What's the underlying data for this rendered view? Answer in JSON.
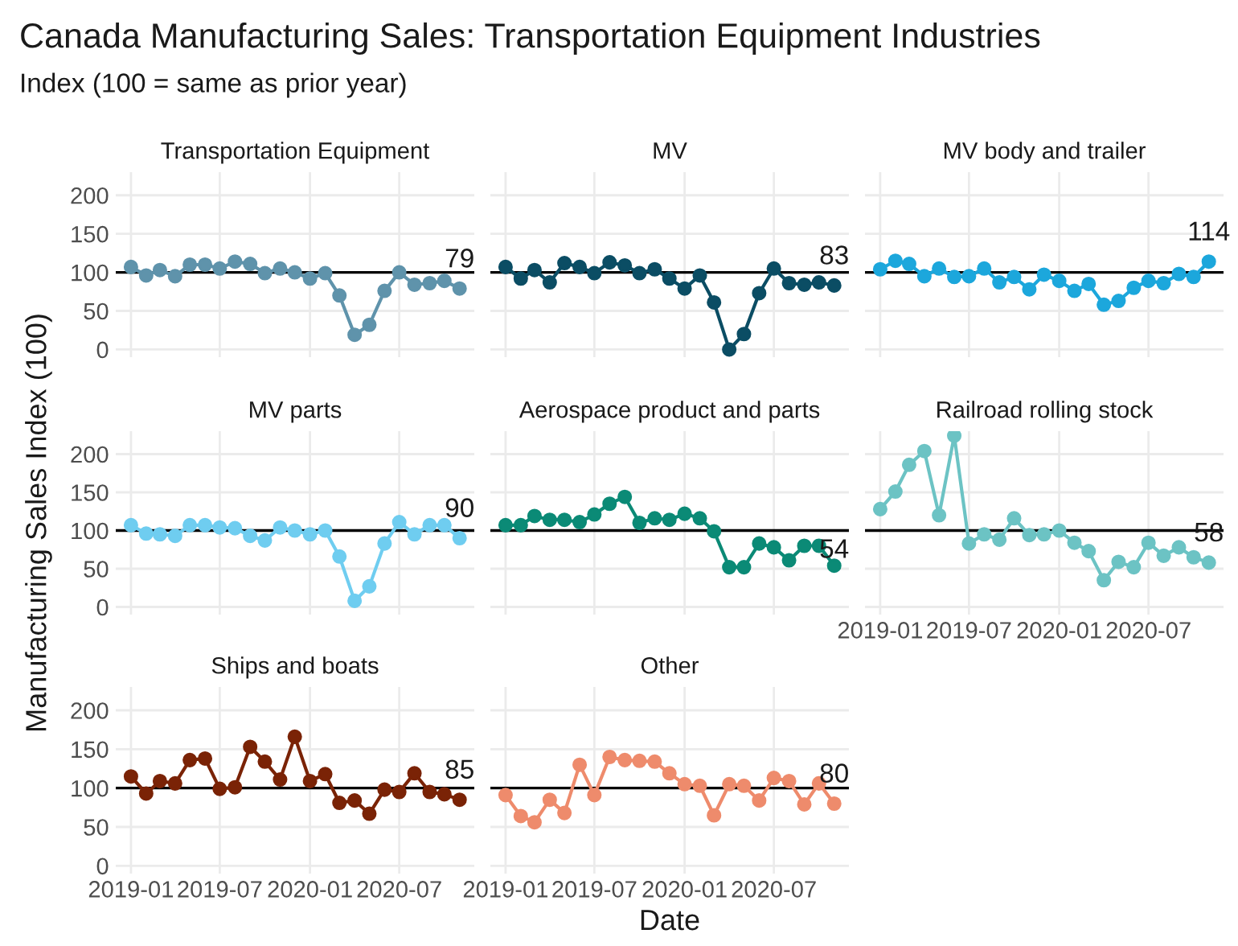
{
  "chart_data": [
    {
      "type": "line",
      "title": "Canada Manufacturing Sales: Transportation Equipment Industries",
      "subtitle": "Index (100 = same as prior year)",
      "tick_labels": "y",
      "grid": true,
      "legend": false,
      "marker": "circle",
      "line_style": "solid",
      "xlim": [
        "2018-12-01",
        "2020-12-01"
      ],
      "ylim": [
        -10,
        230
      ],
      "yticks": [
        0,
        50,
        100,
        150,
        200
      ],
      "xticks": [
        {
          "value": "2019-01",
          "label": null
        },
        {
          "value": "2019-07",
          "label": null
        },
        {
          "value": "2020-01",
          "label": null
        },
        {
          "value": "2020-07",
          "label": null
        }
      ],
      "ref_lines": [
        {
          "axis": "y",
          "value": 100,
          "color": "#000000"
        }
      ],
      "annotations": [
        {
          "text": "79",
          "x": "2020-11",
          "y": 79
        }
      ],
      "x": [
        "2019-01",
        "2019-02",
        "2019-03",
        "2019-04",
        "2019-05",
        "2019-06",
        "2019-07",
        "2019-08",
        "2019-09",
        "2019-10",
        "2019-11",
        "2019-12",
        "2020-01",
        "2020-02",
        "2020-03",
        "2020-04",
        "2020-05",
        "2020-06",
        "2020-07",
        "2020-08",
        "2020-09",
        "2020-10",
        "2020-11"
      ],
      "series": [
        {
          "name": "Transportation Equipment",
          "color": "#5f93ab",
          "values": [
            107,
            96,
            103,
            95,
            110,
            110,
            105,
            114,
            111,
            99,
            105,
            100,
            92,
            99,
            70,
            19,
            32,
            76,
            100,
            84,
            86,
            89,
            79
          ]
        }
      ]
    },
    {
      "type": "line",
      "tick_labels": false,
      "grid": true,
      "legend": false,
      "marker": "circle",
      "line_style": "solid",
      "xlim": [
        "2018-12-01",
        "2020-12-01"
      ],
      "ylim": [
        -10,
        230
      ],
      "yticks": [
        {
          "value": 0,
          "label": null
        },
        {
          "value": 50,
          "label": null
        },
        {
          "value": 100,
          "label": null
        },
        {
          "value": 150,
          "label": null
        },
        {
          "value": 200,
          "label": null
        }
      ],
      "xticks": [
        {
          "value": "2019-01",
          "label": null
        },
        {
          "value": "2019-07",
          "label": null
        },
        {
          "value": "2020-01",
          "label": null
        },
        {
          "value": "2020-07",
          "label": null
        }
      ],
      "ref_lines": [
        {
          "axis": "y",
          "value": 100,
          "color": "#000000"
        }
      ],
      "annotations": [
        {
          "text": "83",
          "x": "2020-11",
          "y": 83
        }
      ],
      "x": [
        "2019-01",
        "2019-02",
        "2019-03",
        "2019-04",
        "2019-05",
        "2019-06",
        "2019-07",
        "2019-08",
        "2019-09",
        "2019-10",
        "2019-11",
        "2019-12",
        "2020-01",
        "2020-02",
        "2020-03",
        "2020-04",
        "2020-05",
        "2020-06",
        "2020-07",
        "2020-08",
        "2020-09",
        "2020-10",
        "2020-11"
      ],
      "series": [
        {
          "name": "MV",
          "color": "#0b4d64",
          "values": [
            107,
            92,
            103,
            87,
            112,
            107,
            99,
            113,
            109,
            99,
            104,
            92,
            79,
            96,
            61,
            0,
            20,
            73,
            105,
            86,
            84,
            87,
            83
          ]
        }
      ]
    },
    {
      "type": "line",
      "tick_labels": false,
      "grid": true,
      "legend": false,
      "marker": "circle",
      "line_style": "solid",
      "xlim": [
        "2018-12-01",
        "2020-12-01"
      ],
      "ylim": [
        -10,
        230
      ],
      "yticks": [
        {
          "value": 0,
          "label": null
        },
        {
          "value": 50,
          "label": null
        },
        {
          "value": 100,
          "label": null
        },
        {
          "value": 150,
          "label": null
        },
        {
          "value": 200,
          "label": null
        }
      ],
      "xticks": [
        {
          "value": "2019-01",
          "label": null
        },
        {
          "value": "2019-07",
          "label": null
        },
        {
          "value": "2020-01",
          "label": null
        },
        {
          "value": "2020-07",
          "label": null
        }
      ],
      "ref_lines": [
        {
          "axis": "y",
          "value": 100,
          "color": "#000000"
        }
      ],
      "annotations": [
        {
          "text": "114",
          "x": "2020-11",
          "y": 114
        }
      ],
      "x": [
        "2019-01",
        "2019-02",
        "2019-03",
        "2019-04",
        "2019-05",
        "2019-06",
        "2019-07",
        "2019-08",
        "2019-09",
        "2019-10",
        "2019-11",
        "2019-12",
        "2020-01",
        "2020-02",
        "2020-03",
        "2020-04",
        "2020-05",
        "2020-06",
        "2020-07",
        "2020-08",
        "2020-09",
        "2020-10",
        "2020-11"
      ],
      "series": [
        {
          "name": "MV body and trailer",
          "color": "#1ca7dc",
          "values": [
            104,
            115,
            111,
            95,
            105,
            94,
            95,
            105,
            87,
            94,
            78,
            97,
            89,
            76,
            85,
            58,
            63,
            80,
            89,
            86,
            98,
            94,
            114
          ]
        }
      ]
    },
    {
      "type": "line",
      "tick_labels": "y",
      "ylabel": "Manufacturing Sales Index (100)",
      "grid": true,
      "legend": false,
      "marker": "circle",
      "line_style": "solid",
      "xlim": [
        "2018-12-01",
        "2020-12-01"
      ],
      "ylim": [
        -10,
        230
      ],
      "yticks": [
        0,
        50,
        100,
        150,
        200
      ],
      "xticks": [
        {
          "value": "2019-01",
          "label": null
        },
        {
          "value": "2019-07",
          "label": null
        },
        {
          "value": "2020-01",
          "label": null
        },
        {
          "value": "2020-07",
          "label": null
        }
      ],
      "ref_lines": [
        {
          "axis": "y",
          "value": 100,
          "color": "#000000"
        }
      ],
      "annotations": [
        {
          "text": "90",
          "x": "2020-11",
          "y": 90
        }
      ],
      "x": [
        "2019-01",
        "2019-02",
        "2019-03",
        "2019-04",
        "2019-05",
        "2019-06",
        "2019-07",
        "2019-08",
        "2019-09",
        "2019-10",
        "2019-11",
        "2019-12",
        "2020-01",
        "2020-02",
        "2020-03",
        "2020-04",
        "2020-05",
        "2020-06",
        "2020-07",
        "2020-08",
        "2020-09",
        "2020-10",
        "2020-11"
      ],
      "series": [
        {
          "name": "MV parts",
          "color": "#6fcdf0",
          "values": [
            107,
            96,
            95,
            93,
            107,
            107,
            104,
            103,
            93,
            87,
            104,
            100,
            95,
            100,
            66,
            8,
            27,
            83,
            111,
            95,
            107,
            107,
            90
          ]
        }
      ]
    },
    {
      "type": "line",
      "tick_labels": false,
      "grid": true,
      "legend": false,
      "marker": "circle",
      "line_style": "solid",
      "xlim": [
        "2018-12-01",
        "2020-12-01"
      ],
      "ylim": [
        -10,
        230
      ],
      "yticks": [
        {
          "value": 0,
          "label": null
        },
        {
          "value": 50,
          "label": null
        },
        {
          "value": 100,
          "label": null
        },
        {
          "value": 150,
          "label": null
        },
        {
          "value": 200,
          "label": null
        }
      ],
      "xticks": [
        {
          "value": "2019-01",
          "label": null
        },
        {
          "value": "2019-07",
          "label": null
        },
        {
          "value": "2020-01",
          "label": null
        },
        {
          "value": "2020-07",
          "label": null
        }
      ],
      "ref_lines": [
        {
          "axis": "y",
          "value": 100,
          "color": "#000000"
        }
      ],
      "annotations": [
        {
          "text": "54",
          "x": "2020-11",
          "y": 54
        }
      ],
      "x": [
        "2019-01",
        "2019-02",
        "2019-03",
        "2019-04",
        "2019-05",
        "2019-06",
        "2019-07",
        "2019-08",
        "2019-09",
        "2019-10",
        "2019-11",
        "2019-12",
        "2020-01",
        "2020-02",
        "2020-03",
        "2020-04",
        "2020-05",
        "2020-06",
        "2020-07",
        "2020-08",
        "2020-09",
        "2020-10",
        "2020-11"
      ],
      "series": [
        {
          "name": "Aerospace product and parts",
          "color": "#0b8a76",
          "values": [
            107,
            107,
            119,
            114,
            114,
            111,
            121,
            135,
            144,
            110,
            116,
            114,
            122,
            116,
            99,
            52,
            52,
            83,
            78,
            61,
            80,
            80,
            54
          ]
        }
      ]
    },
    {
      "type": "line",
      "tick_labels": "x",
      "grid": true,
      "legend": false,
      "marker": "circle",
      "line_style": "solid",
      "xlim": [
        "2018-12-01",
        "2020-12-01"
      ],
      "ylim": [
        -10,
        230
      ],
      "yticks": [
        {
          "value": 0,
          "label": null
        },
        {
          "value": 50,
          "label": null
        },
        {
          "value": 100,
          "label": null
        },
        {
          "value": 150,
          "label": null
        },
        {
          "value": 200,
          "label": null
        }
      ],
      "xticks": [
        {
          "value": "2019-01",
          "label": "2019-01"
        },
        {
          "value": "2019-07",
          "label": "2019-07"
        },
        {
          "value": "2020-01",
          "label": "2020-01"
        },
        {
          "value": "2020-07",
          "label": "2020-07"
        }
      ],
      "ref_lines": [
        {
          "axis": "y",
          "value": 100,
          "color": "#000000"
        }
      ],
      "annotations": [
        {
          "text": "58",
          "x": "2020-11",
          "y": 58
        }
      ],
      "x": [
        "2019-01",
        "2019-02",
        "2019-03",
        "2019-04",
        "2019-05",
        "2019-06",
        "2019-07",
        "2019-08",
        "2019-09",
        "2019-10",
        "2019-11",
        "2019-12",
        "2020-01",
        "2020-02",
        "2020-03",
        "2020-04",
        "2020-05",
        "2020-06",
        "2020-07",
        "2020-08",
        "2020-09",
        "2020-10",
        "2020-11"
      ],
      "series": [
        {
          "name": "Railroad rolling stock",
          "color": "#6cc3c4",
          "values": [
            128,
            151,
            186,
            204,
            120,
            224,
            83,
            95,
            88,
            116,
            94,
            95,
            100,
            84,
            73,
            35,
            59,
            52,
            84,
            67,
            78,
            65,
            58
          ]
        }
      ]
    },
    {
      "type": "line",
      "grid": true,
      "legend": false,
      "marker": "circle",
      "line_style": "solid",
      "xlim": [
        "2018-12-01",
        "2020-12-01"
      ],
      "ylim": [
        -10,
        230
      ],
      "yticks": [
        0,
        50,
        100,
        150,
        200
      ],
      "xticks": [
        {
          "value": "2019-01",
          "label": "2019-01"
        },
        {
          "value": "2019-07",
          "label": "2019-07"
        },
        {
          "value": "2020-01",
          "label": "2020-01"
        },
        {
          "value": "2020-07",
          "label": "2020-07"
        }
      ],
      "ref_lines": [
        {
          "axis": "y",
          "value": 100,
          "color": "#000000"
        }
      ],
      "annotations": [
        {
          "text": "85",
          "x": "2020-11",
          "y": 85
        }
      ],
      "x": [
        "2019-01",
        "2019-02",
        "2019-03",
        "2019-04",
        "2019-05",
        "2019-06",
        "2019-07",
        "2019-08",
        "2019-09",
        "2019-10",
        "2019-11",
        "2019-12",
        "2020-01",
        "2020-02",
        "2020-03",
        "2020-04",
        "2020-05",
        "2020-06",
        "2020-07",
        "2020-08",
        "2020-09",
        "2020-10",
        "2020-11"
      ],
      "series": [
        {
          "name": "Ships and boats",
          "color": "#7a2306",
          "values": [
            115,
            93,
            109,
            106,
            136,
            138,
            99,
            101,
            153,
            134,
            111,
            166,
            109,
            118,
            81,
            84,
            67,
            98,
            95,
            119,
            95,
            92,
            85
          ]
        }
      ]
    },
    {
      "type": "line",
      "tick_labels": "x",
      "xlabel": "Date",
      "grid": true,
      "legend": false,
      "marker": "circle",
      "line_style": "solid",
      "xlim": [
        "2018-12-01",
        "2020-12-01"
      ],
      "ylim": [
        -10,
        230
      ],
      "yticks": [
        {
          "value": 0,
          "label": null
        },
        {
          "value": 50,
          "label": null
        },
        {
          "value": 100,
          "label": null
        },
        {
          "value": 150,
          "label": null
        },
        {
          "value": 200,
          "label": null
        }
      ],
      "xticks": [
        {
          "value": "2019-01",
          "label": "2019-01"
        },
        {
          "value": "2019-07",
          "label": "2019-07"
        },
        {
          "value": "2020-01",
          "label": "2020-01"
        },
        {
          "value": "2020-07",
          "label": "2020-07"
        }
      ],
      "ref_lines": [
        {
          "axis": "y",
          "value": 100,
          "color": "#000000"
        }
      ],
      "annotations": [
        {
          "text": "80",
          "x": "2020-11",
          "y": 80
        }
      ],
      "x": [
        "2019-01",
        "2019-02",
        "2019-03",
        "2019-04",
        "2019-05",
        "2019-06",
        "2019-07",
        "2019-08",
        "2019-09",
        "2019-10",
        "2019-11",
        "2019-12",
        "2020-01",
        "2020-02",
        "2020-03",
        "2020-04",
        "2020-05",
        "2020-06",
        "2020-07",
        "2020-08",
        "2020-09",
        "2020-10",
        "2020-11"
      ],
      "series": [
        {
          "name": "Other",
          "color": "#ee8b6c",
          "values": [
            91,
            64,
            56,
            85,
            68,
            130,
            91,
            140,
            136,
            135,
            134,
            119,
            105,
            103,
            65,
            105,
            103,
            84,
            113,
            109,
            79,
            106,
            80
          ]
        }
      ]
    }
  ]
}
